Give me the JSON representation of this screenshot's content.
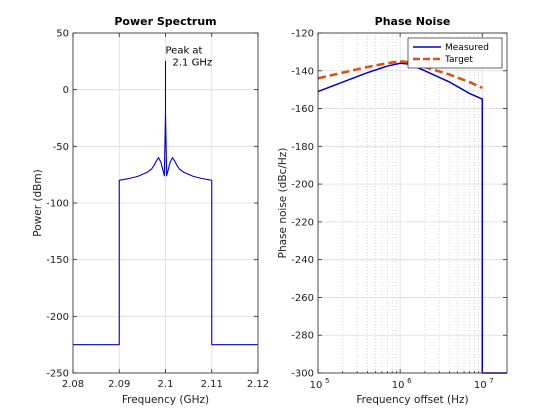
{
  "chart_data": [
    {
      "type": "line",
      "title": "Power Spectrum",
      "xlabel": "Frequency (GHz)",
      "ylabel": "Power (dBm)",
      "xlim": [
        2.08,
        2.12
      ],
      "ylim": [
        -250,
        50
      ],
      "xticks": [
        2.08,
        2.09,
        2.1,
        2.11,
        2.12
      ],
      "xtick_labels": [
        "2.08",
        "2.09",
        "2.1",
        "2.11",
        "2.12"
      ],
      "yticks": [
        50,
        0,
        -50,
        -100,
        -150,
        -200,
        -250
      ],
      "ytick_labels": [
        "50",
        "0",
        "-50",
        "-100",
        "-150",
        "-200",
        "-250"
      ],
      "grid": true,
      "color": "#0000cc",
      "annotation": {
        "lines": [
          "Peak at",
          "2.1 GHz"
        ],
        "x": 2.1,
        "y": 25
      },
      "series": [
        {
          "x": [
            2.08,
            2.09,
            2.09,
            2.092,
            2.094,
            2.096,
            2.097,
            2.0975,
            2.098,
            2.0985,
            2.099,
            2.0995,
            2.09975,
            2.1,
            2.1,
            2.1,
            2.10025,
            2.1005,
            2.101,
            2.1015,
            2.102,
            2.1025,
            2.103,
            2.104,
            2.106,
            2.108,
            2.11,
            2.11,
            2.12
          ],
          "y": [
            -225,
            -225,
            -80,
            -78.5,
            -76.5,
            -73,
            -70,
            -67,
            -63,
            -60,
            -64,
            -72,
            -76,
            -20,
            25,
            -20,
            -76,
            -72,
            -64,
            -60,
            -63,
            -67,
            -70,
            -73,
            -76.5,
            -78.5,
            -80,
            -225,
            -225
          ]
        }
      ]
    },
    {
      "type": "line",
      "title": "Phase Noise",
      "xlabel": "Frequency offset (Hz)",
      "ylabel": "Phase noise (dBc/Hz)",
      "xscale": "log",
      "xlim": [
        100000,
        20000000
      ],
      "ylim": [
        -300,
        -120
      ],
      "xticks": [
        100000,
        1000000,
        10000000
      ],
      "xtick_labels": [
        {
          "base": "10",
          "exp": "5"
        },
        {
          "base": "10",
          "exp": "6"
        },
        {
          "base": "10",
          "exp": "7"
        }
      ],
      "yticks": [
        -120,
        -140,
        -160,
        -180,
        -200,
        -220,
        -240,
        -260,
        -280,
        -300
      ],
      "ytick_labels": [
        "-120",
        "-140",
        "-160",
        "-180",
        "-200",
        "-220",
        "-240",
        "-260",
        "-280",
        "-300"
      ],
      "grid": true,
      "minor_grid": true,
      "legend": {
        "position": "top-right",
        "entries": [
          "Measured",
          "Target"
        ]
      },
      "series": [
        {
          "name": "Measured",
          "color": "#0000cc",
          "style": "solid",
          "x": [
            100000,
            200000,
            400000,
            700000,
            1000000,
            1300000,
            2000000,
            4000000,
            7000000,
            10000000,
            10000000,
            10000000,
            20000000
          ],
          "y": [
            -151,
            -146,
            -141,
            -137.5,
            -136,
            -136.5,
            -140,
            -146,
            -152,
            -155,
            -300,
            -300,
            -300
          ]
        },
        {
          "name": "Target",
          "color": "#d95319",
          "style": "dashed",
          "x": [
            100000,
            200000,
            400000,
            700000,
            1000000,
            1300000,
            2000000,
            4000000,
            7000000,
            10000000
          ],
          "y": [
            -144,
            -141,
            -138,
            -136,
            -135,
            -135.5,
            -138,
            -142,
            -146,
            -149
          ]
        }
      ]
    }
  ]
}
